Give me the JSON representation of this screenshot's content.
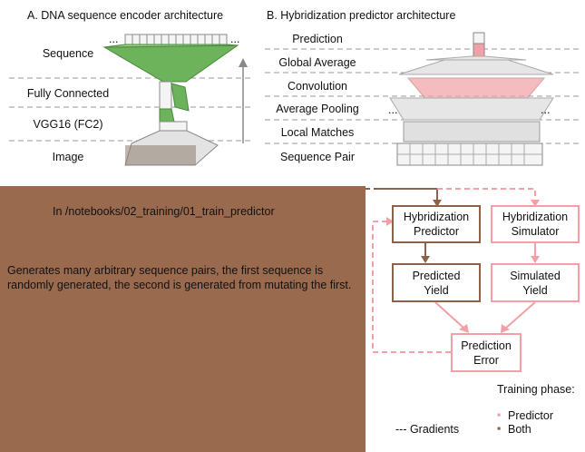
{
  "panel_a": {
    "title": "A. DNA sequence encoder architecture",
    "layers": [
      "Sequence",
      "Fully Connected",
      "VGG16 (FC2)",
      "Image"
    ],
    "ellipsis_left": "...",
    "ellipsis_right": "..."
  },
  "panel_b": {
    "title": "B. Hybridization predictor architecture",
    "layers": [
      "Prediction",
      "Global Average",
      "Convolution",
      "Average Pooling",
      "Local Matches",
      "Sequence Pair"
    ],
    "ellipsis_left": "...",
    "ellipsis_right": "..."
  },
  "overlay": {
    "path_text": "In /notebooks/02_training/01_train_predictor",
    "description": "Generates many arbitrary sequence pairs, the first sequence is randomly generated, the second is generated from mutating the first."
  },
  "flow": {
    "hyb_predictor": "Hybridization Predictor",
    "hyb_simulator": "Hybridization Simulator",
    "predicted_yield": "Predicted Yield",
    "simulated_yield": "Simulated Yield",
    "prediction_error": "Prediction Error"
  },
  "legend": {
    "title": "Training phase:",
    "gradients": "--- Gradients",
    "predictor_bullet": "▪",
    "predictor_label": "Predictor",
    "both_bullet": "▪",
    "both_label": "Both"
  },
  "colors": {
    "green": "#6db35b",
    "pink": "#f2a0a6",
    "brown": "#8d6248",
    "panel_bg": "#9a6a4f"
  }
}
